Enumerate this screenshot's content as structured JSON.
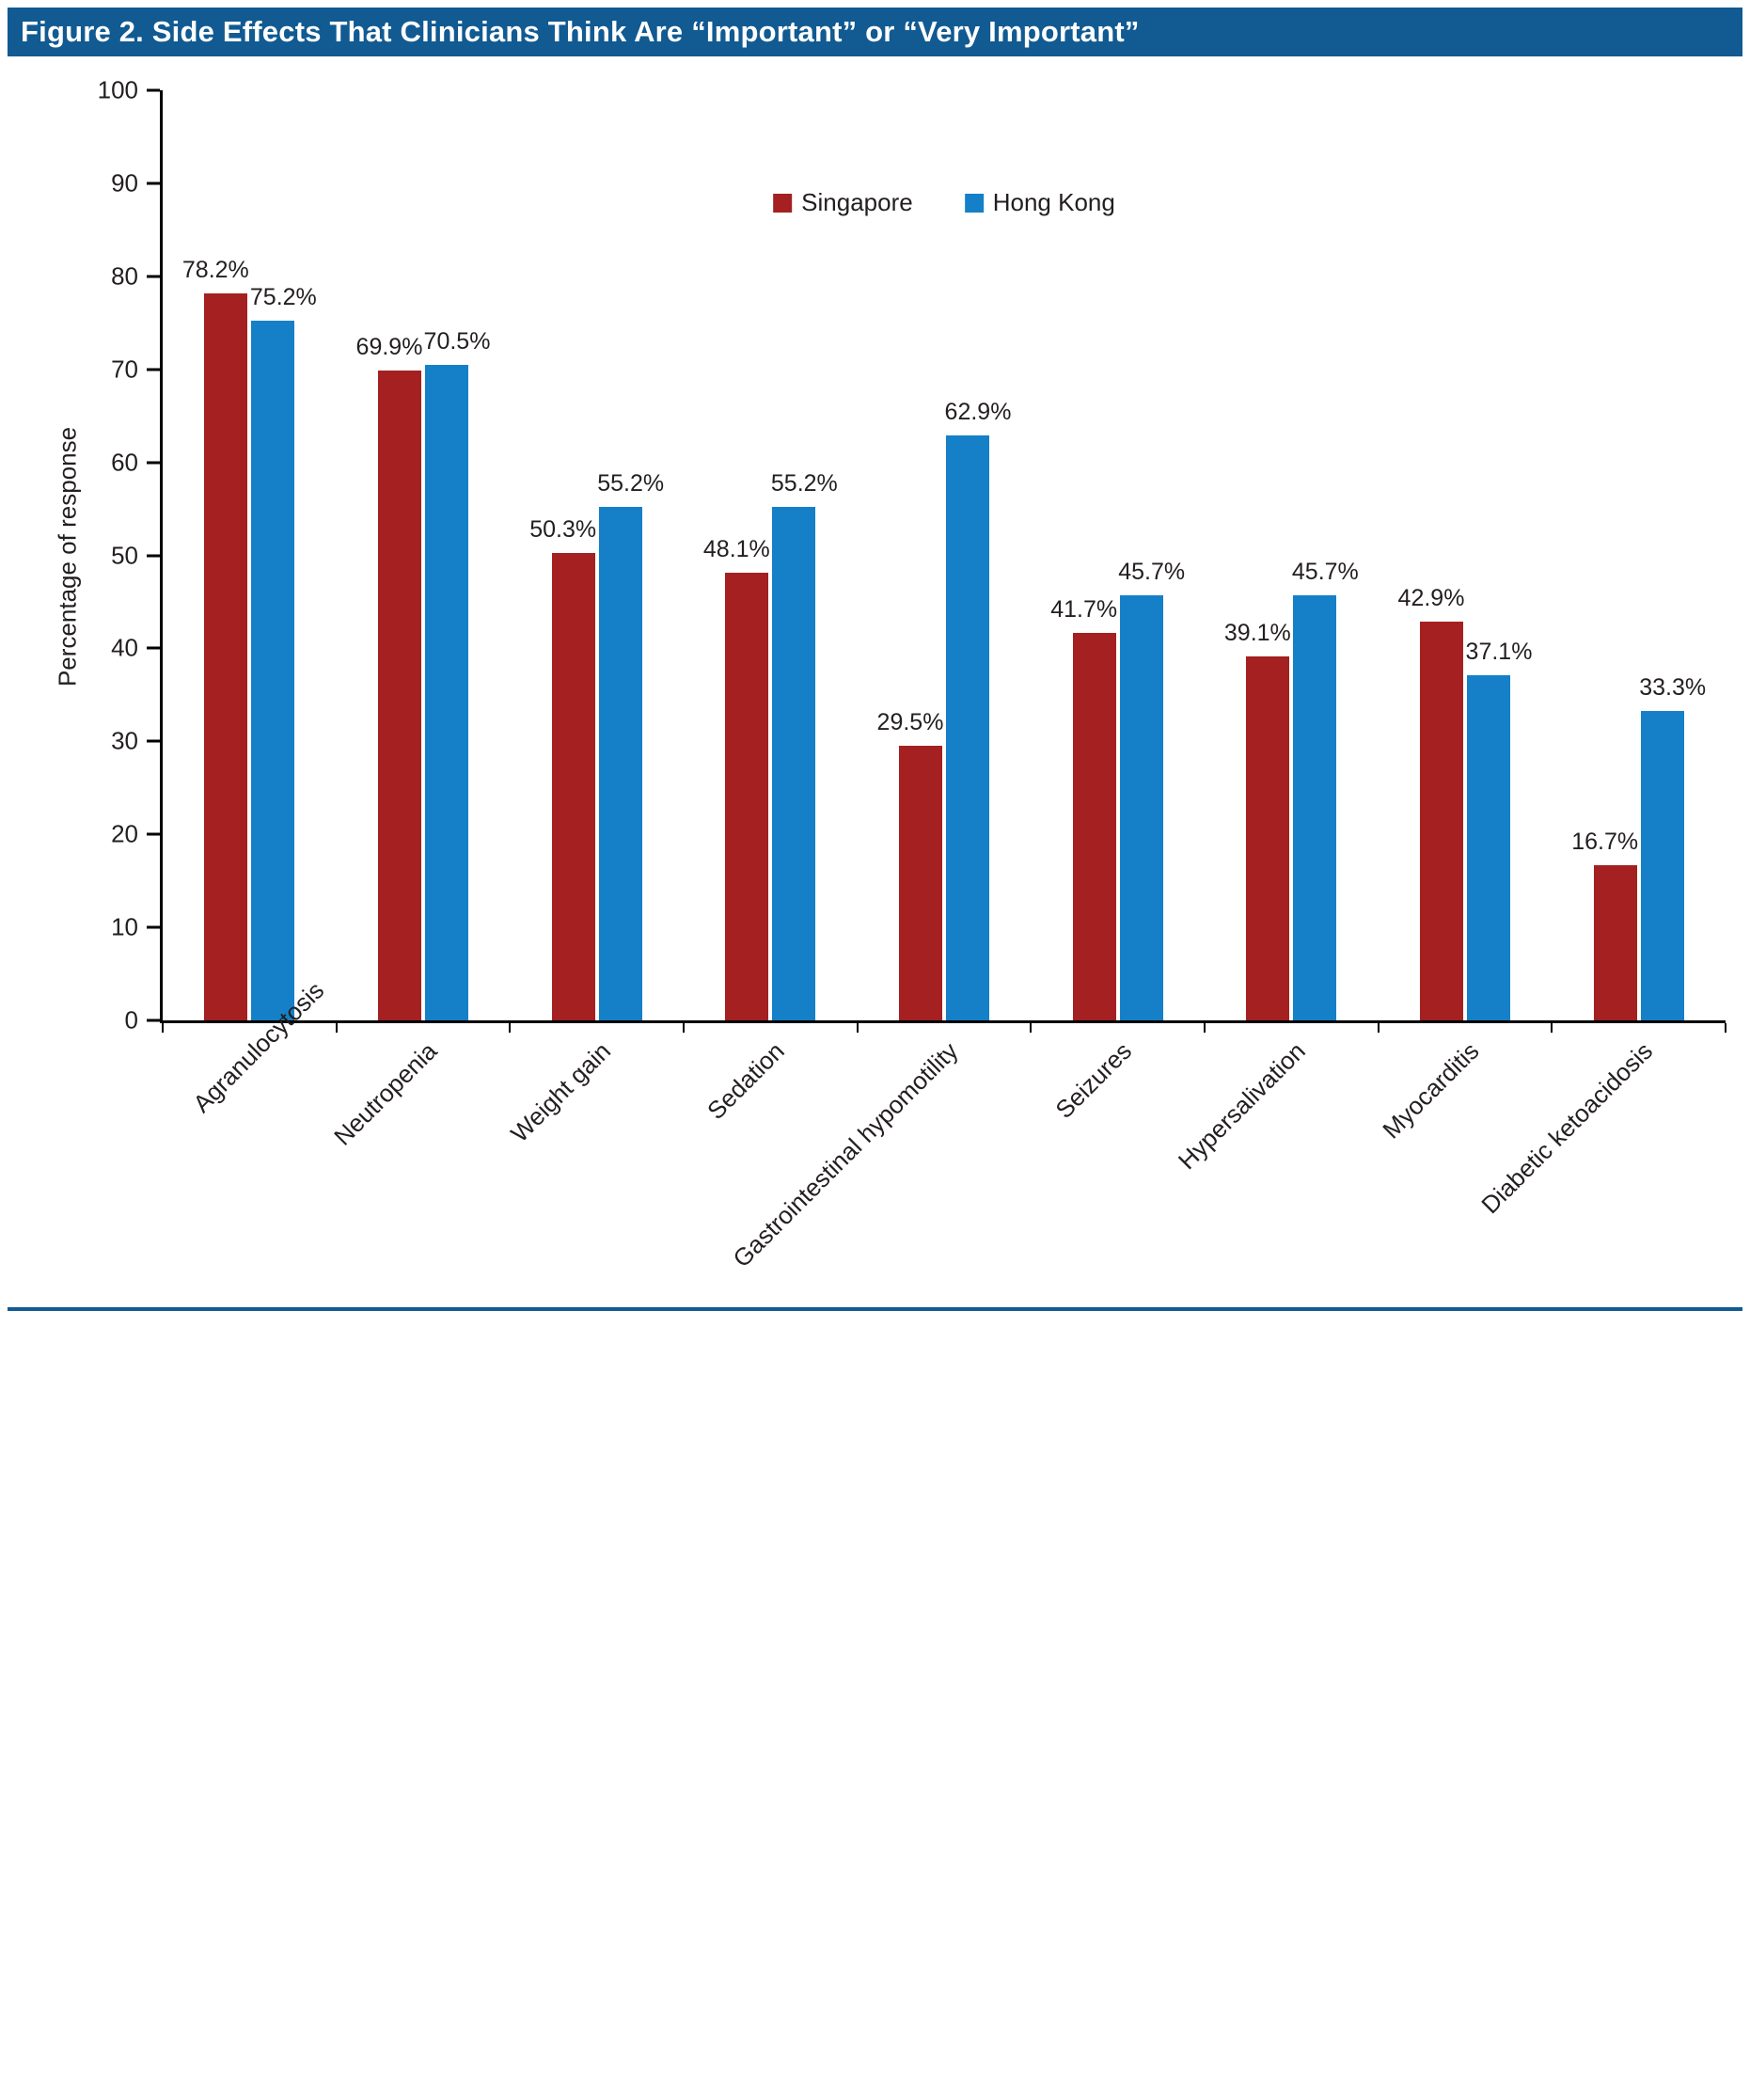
{
  "figure": {
    "title": "Figure 2. Side Effects That Clinicians Think Are “Important” or “Very Important”"
  },
  "chart_data": {
    "type": "bar",
    "title": "Figure 2. Side Effects That Clinicians Think Are “Important” or “Very Important”",
    "xlabel": "",
    "ylabel": "Percentage of response",
    "ylim": [
      0,
      100
    ],
    "ytick_interval": 10,
    "grid": false,
    "legend_position": "top-center",
    "data_labels": "percent, one decimal",
    "categories": [
      "Agranulocytosis",
      "Neutropenia",
      "Weight gain",
      "Sedation",
      "Gastrointestinal hypomotility",
      "Seizures",
      "Hypersalivation",
      "Myocarditis",
      "Diabetic ketoacidosis"
    ],
    "series": [
      {
        "name": "Singapore",
        "color": "#A42021",
        "values": [
          78.2,
          69.9,
          50.3,
          48.1,
          29.5,
          41.7,
          39.1,
          42.9,
          16.7
        ]
      },
      {
        "name": "Hong Kong",
        "color": "#1580C8",
        "values": [
          75.2,
          70.5,
          55.2,
          55.2,
          62.9,
          45.7,
          45.7,
          37.1,
          33.3
        ]
      }
    ]
  },
  "colors": {
    "header_bg": "#115A92",
    "footer_line": "#115A92",
    "axis": "#000000"
  }
}
